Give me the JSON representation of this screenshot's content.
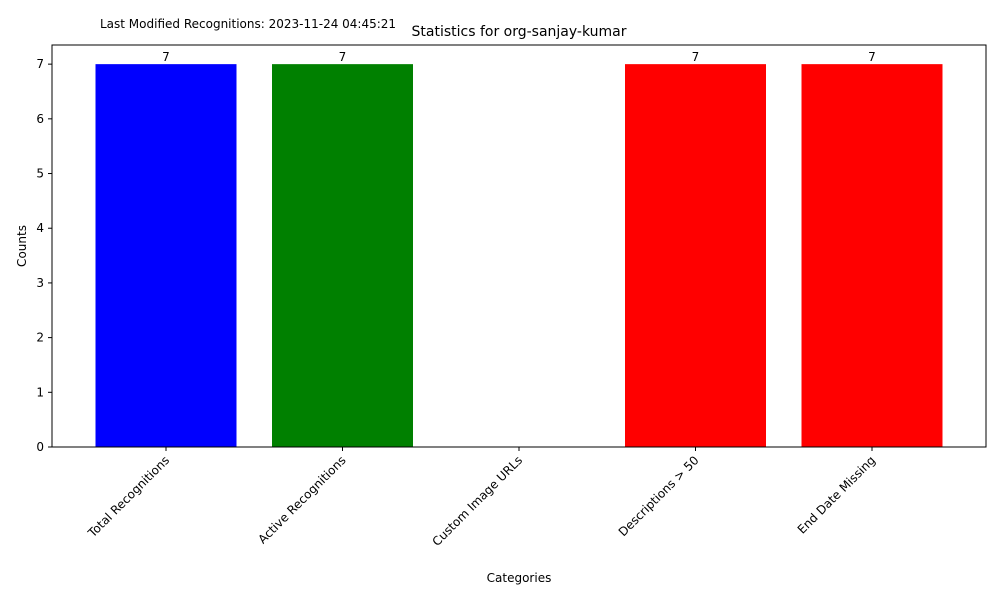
{
  "chart_data": {
    "type": "bar",
    "title": "Statistics for org-sanjay-kumar",
    "annotation": "Last Modified Recognitions: 2023-11-24 04:45:21",
    "xlabel": "Categories",
    "ylabel": "Counts",
    "categories": [
      "Total Recognitions",
      "Active Recognitions",
      "Custom Image URLs",
      "Descriptions > 50",
      "End Date Missing"
    ],
    "values": [
      7,
      7,
      0,
      7,
      7
    ],
    "data_labels": [
      "7",
      "7",
      "",
      "7",
      "7"
    ],
    "colors": [
      "#0000ff",
      "#008000",
      "#ff0000",
      "#ff0000",
      "#ff0000"
    ],
    "y_ticks": [
      0,
      1,
      2,
      3,
      4,
      5,
      6,
      7
    ],
    "ylim": [
      0,
      7.35
    ],
    "grid": false,
    "legend": "none"
  }
}
